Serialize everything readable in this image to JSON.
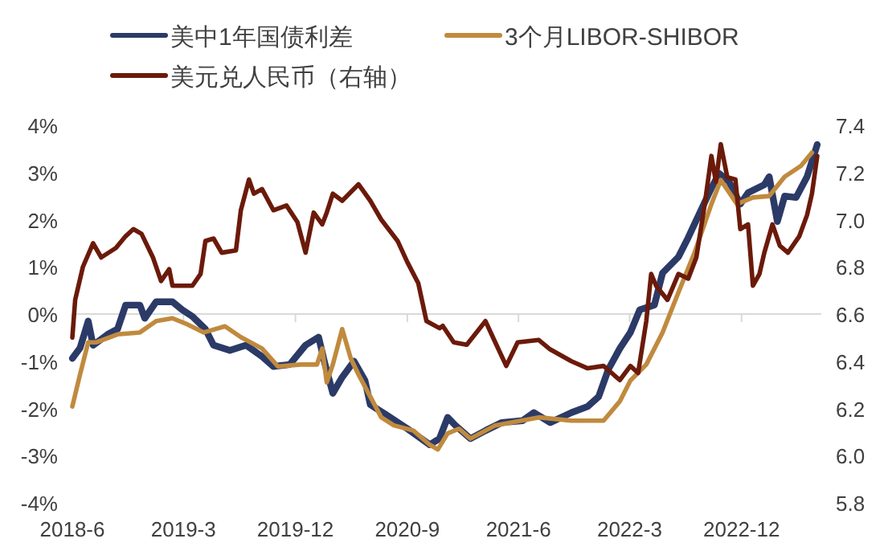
{
  "chart_data": {
    "type": "line",
    "legend": "top",
    "grid": false,
    "marker": "none",
    "line_style": "solid",
    "xlim": [
      "2018-06-01",
      "2023-06-15"
    ],
    "xticks": [
      {
        "value": "2018-06",
        "label": "2018-6"
      },
      {
        "value": "2019-03",
        "label": "2019-3"
      },
      {
        "value": "2019-12",
        "label": "2019-12"
      },
      {
        "value": "2020-09",
        "label": "2020-9"
      },
      {
        "value": "2021-06",
        "label": "2021-6"
      },
      {
        "value": "2022-03",
        "label": "2022-3"
      },
      {
        "value": "2022-12",
        "label": "2022-12"
      }
    ],
    "ylim": [
      -4,
      4
    ],
    "yticks": [
      {
        "value": -4,
        "label": "-4%"
      },
      {
        "value": -3,
        "label": "-3%"
      },
      {
        "value": -2,
        "label": "-2%"
      },
      {
        "value": -1,
        "label": "-1%"
      },
      {
        "value": 0,
        "label": "0%"
      },
      {
        "value": 1,
        "label": "1%"
      },
      {
        "value": 2,
        "label": "2%"
      },
      {
        "value": 3,
        "label": "3%"
      },
      {
        "value": 4,
        "label": "4%"
      }
    ],
    "ref_lines": [
      {
        "axis": "y",
        "value": 0,
        "color": "#d9d9d9"
      }
    ],
    "y2lim": [
      5.8,
      7.4
    ],
    "y2ticks": [
      5.8,
      {
        "value": 6.0,
        "label": "6.0"
      },
      6.2,
      6.4,
      6.6,
      6.8,
      {
        "value": 7.0,
        "label": "7.0"
      },
      7.2,
      7.4
    ],
    "series": [
      {
        "name": "美中1年国债利差",
        "color": "#2b3a67",
        "x": [
          "2018-06-01",
          "2018-06-20",
          "2018-07-10",
          "2018-07-22",
          "2018-08-27",
          "2018-09-20",
          "2018-10-10",
          "2018-11-14",
          "2018-11-26",
          "2018-12-24",
          "2019-02-02",
          "2019-02-26",
          "2019-03-23",
          "2019-04-24",
          "2019-05-14",
          "2019-06-23",
          "2019-08-02",
          "2019-09-10",
          "2019-10-08",
          "2019-11-17",
          "2019-12-26",
          "2020-01-27",
          "2020-02-12",
          "2020-03-02",
          "2020-03-25",
          "2020-04-23",
          "2020-05-20",
          "2020-06-02",
          "2020-07-10",
          "2020-09-01",
          "2020-10-26",
          "2020-11-19",
          "2020-12-09",
          "2020-12-28",
          "2021-02-03",
          "2021-03-12",
          "2021-04-21",
          "2021-06-11",
          "2021-07-09",
          "2021-08-18",
          "2021-10-09",
          "2021-11-18",
          "2021-12-15",
          "2022-01-08",
          "2022-02-05",
          "2022-03-03",
          "2022-03-26",
          "2022-05-01",
          "2022-05-21",
          "2022-06-29",
          "2022-07-23",
          "2022-08-12",
          "2022-09-18",
          "2022-10-07",
          "2022-10-31",
          "2022-11-28",
          "2022-12-17",
          "2023-01-26",
          "2023-02-07",
          "2023-02-27",
          "2023-03-17",
          "2023-04-14",
          "2023-05-11",
          "2023-06-05"
        ],
        "values": [
          -0.94,
          -0.72,
          -0.15,
          -0.66,
          -0.43,
          -0.32,
          0.19,
          0.19,
          -0.09,
          0.26,
          0.26,
          0.09,
          -0.05,
          -0.32,
          -0.66,
          -0.77,
          -0.66,
          -0.9,
          -1.11,
          -1.07,
          -0.66,
          -0.49,
          -1.07,
          -1.68,
          -1.34,
          -1.0,
          -1.41,
          -1.92,
          -2.13,
          -2.43,
          -2.77,
          -2.64,
          -2.19,
          -2.36,
          -2.64,
          -2.47,
          -2.3,
          -2.26,
          -2.09,
          -2.3,
          -2.09,
          -1.96,
          -1.75,
          -1.17,
          -0.73,
          -0.39,
          0.09,
          0.19,
          0.87,
          1.21,
          1.62,
          1.99,
          2.67,
          2.98,
          2.81,
          2.33,
          2.57,
          2.74,
          2.91,
          1.96,
          2.5,
          2.47,
          2.91,
          3.59
        ]
      },
      {
        "name": "3个月LIBOR-SHIBOR",
        "color": "#c08a3e",
        "x": [
          "2018-06-01",
          "2018-06-20",
          "2018-07-10",
          "2018-07-29",
          "2018-09-20",
          "2018-11-14",
          "2018-12-24",
          "2019-02-02",
          "2019-03-11",
          "2019-04-20",
          "2019-06-11",
          "2019-07-20",
          "2019-09-10",
          "2019-10-19",
          "2019-12-14",
          "2020-01-23",
          "2020-02-05",
          "2020-02-16",
          "2020-03-02",
          "2020-03-25",
          "2020-04-15",
          "2020-05-04",
          "2020-06-02",
          "2020-06-29",
          "2020-07-30",
          "2020-09-16",
          "2020-10-26",
          "2020-11-15",
          "2020-12-09",
          "2021-01-06",
          "2021-02-03",
          "2021-04-05",
          "2021-07-21",
          "2021-10-09",
          "2021-12-27",
          "2022-02-05",
          "2022-03-03",
          "2022-04-11",
          "2022-05-21",
          "2022-06-29",
          "2022-08-08",
          "2022-09-18",
          "2022-10-11",
          "2022-11-20",
          "2022-12-29",
          "2023-02-07",
          "2023-03-17",
          "2023-04-26",
          "2023-05-23"
        ],
        "values": [
          -1.96,
          -1.28,
          -0.6,
          -0.6,
          -0.43,
          -0.39,
          -0.15,
          -0.09,
          -0.22,
          -0.39,
          -0.26,
          -0.49,
          -0.73,
          -1.11,
          -1.07,
          -1.07,
          -0.73,
          -1.45,
          -1.07,
          -0.32,
          -0.94,
          -1.28,
          -1.75,
          -2.19,
          -2.36,
          -2.47,
          -2.77,
          -2.87,
          -2.53,
          -2.43,
          -2.64,
          -2.36,
          -2.19,
          -2.26,
          -2.26,
          -1.85,
          -1.41,
          -1.07,
          -0.39,
          0.46,
          1.31,
          2.33,
          2.84,
          2.33,
          2.47,
          2.5,
          2.91,
          3.14,
          3.42
        ]
      },
      {
        "name": "美元兑人民币（右轴）",
        "color": "#6b1a0a",
        "axis": "y2",
        "x": [
          "2018-06-01",
          "2018-06-08",
          "2018-06-27",
          "2018-07-22",
          "2018-08-11",
          "2018-09-16",
          "2018-10-10",
          "2018-10-29",
          "2018-11-18",
          "2018-12-16",
          "2019-01-05",
          "2019-01-25",
          "2019-02-02",
          "2019-02-26",
          "2019-03-23",
          "2019-04-12",
          "2019-04-24",
          "2019-05-14",
          "2019-06-03",
          "2019-07-08",
          "2019-07-20",
          "2019-08-09",
          "2019-08-21",
          "2019-09-10",
          "2019-10-08",
          "2019-11-09",
          "2019-12-06",
          "2019-12-26",
          "2020-01-15",
          "2020-02-05",
          "2020-02-16",
          "2020-03-02",
          "2020-03-25",
          "2020-05-04",
          "2020-06-02",
          "2020-06-29",
          "2020-08-08",
          "2020-09-01",
          "2020-09-28",
          "2020-10-18",
          "2020-11-19",
          "2020-11-27",
          "2020-12-24",
          "2021-01-25",
          "2021-03-12",
          "2021-04-05",
          "2021-05-02",
          "2021-05-30",
          "2021-07-21",
          "2021-08-18",
          "2021-10-09",
          "2021-11-18",
          "2021-12-27",
          "2022-02-05",
          "2022-03-03",
          "2022-03-22",
          "2022-04-11",
          "2022-04-23",
          "2022-05-05",
          "2022-06-02",
          "2022-06-29",
          "2022-07-23",
          "2022-08-12",
          "2022-09-02",
          "2022-09-18",
          "2022-09-29",
          "2022-10-11",
          "2022-10-27",
          "2022-11-16",
          "2022-11-28",
          "2022-12-17",
          "2022-12-29",
          "2023-01-14",
          "2023-01-26",
          "2023-02-15",
          "2023-03-05",
          "2023-03-25",
          "2023-04-22",
          "2023-05-11",
          "2023-05-23",
          "2023-06-05"
        ],
        "values": [
          6.5,
          6.66,
          6.8,
          6.9,
          6.84,
          6.88,
          6.93,
          6.96,
          6.94,
          6.84,
          6.74,
          6.79,
          6.72,
          6.72,
          6.72,
          6.77,
          6.91,
          6.92,
          6.86,
          6.87,
          7.04,
          7.17,
          7.11,
          7.13,
          7.04,
          7.06,
          6.99,
          6.86,
          7.03,
          6.98,
          7.03,
          7.11,
          7.08,
          7.15,
          7.08,
          7.0,
          6.91,
          6.82,
          6.73,
          6.57,
          6.54,
          6.55,
          6.48,
          6.47,
          6.57,
          6.48,
          6.38,
          6.48,
          6.49,
          6.45,
          6.4,
          6.37,
          6.38,
          6.32,
          6.38,
          6.35,
          6.57,
          6.77,
          6.72,
          6.66,
          6.77,
          6.75,
          6.84,
          7.07,
          7.27,
          7.16,
          7.32,
          7.18,
          7.17,
          6.96,
          6.98,
          6.72,
          6.77,
          6.86,
          6.98,
          6.89,
          6.86,
          6.93,
          7.02,
          7.11,
          7.27
        ]
      }
    ]
  }
}
